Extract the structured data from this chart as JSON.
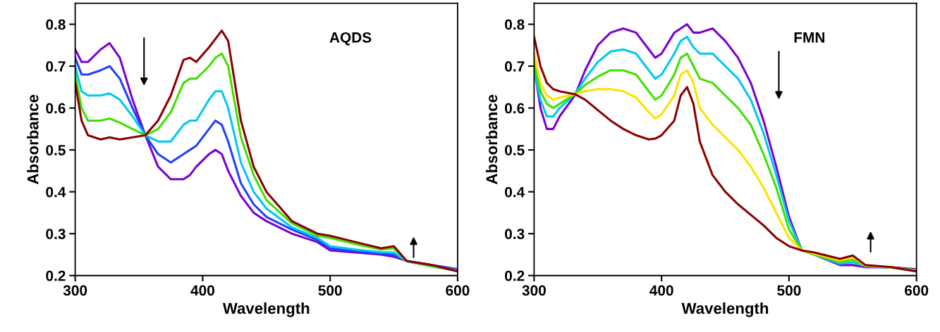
{
  "chart_data": [
    {
      "type": "line",
      "xlabel": "Wavelength",
      "ylabel": "Absorbance",
      "annotations": [
        "AQDS"
      ],
      "xlim": [
        300,
        600
      ],
      "xticks": [
        300,
        400,
        500,
        600
      ],
      "ylim": [
        0.2,
        0.85
      ],
      "yticks": [
        0.2,
        0.3,
        0.4,
        0.5,
        0.6,
        0.7,
        0.8
      ],
      "grid": false,
      "legend": false,
      "x": [
        300,
        305,
        310,
        320,
        327,
        335,
        345,
        355,
        365,
        375,
        385,
        390,
        395,
        405,
        410,
        415,
        420,
        430,
        440,
        450,
        470,
        490,
        500,
        520,
        540,
        550,
        560,
        580,
        600
      ],
      "series": [
        {
          "color": "#7a00d0",
          "values": [
            0.74,
            0.71,
            0.71,
            0.74,
            0.755,
            0.72,
            0.62,
            0.535,
            0.46,
            0.43,
            0.43,
            0.44,
            0.46,
            0.49,
            0.5,
            0.49,
            0.45,
            0.39,
            0.35,
            0.33,
            0.3,
            0.28,
            0.26,
            0.255,
            0.25,
            0.245,
            0.235,
            0.225,
            0.215
          ]
        },
        {
          "color": "#2040ff",
          "values": [
            0.72,
            0.68,
            0.68,
            0.69,
            0.7,
            0.67,
            0.6,
            0.535,
            0.49,
            0.47,
            0.49,
            0.5,
            0.51,
            0.55,
            0.57,
            0.56,
            0.52,
            0.42,
            0.37,
            0.34,
            0.31,
            0.285,
            0.265,
            0.258,
            0.252,
            0.25,
            0.235,
            0.223,
            0.213
          ]
        },
        {
          "color": "#00c8f0",
          "values": [
            0.7,
            0.64,
            0.63,
            0.63,
            0.635,
            0.62,
            0.58,
            0.535,
            0.52,
            0.52,
            0.56,
            0.57,
            0.57,
            0.62,
            0.64,
            0.64,
            0.6,
            0.47,
            0.4,
            0.36,
            0.315,
            0.29,
            0.27,
            0.262,
            0.256,
            0.255,
            0.234,
            0.222,
            0.212
          ]
        },
        {
          "color": "#40e000",
          "values": [
            0.68,
            0.6,
            0.57,
            0.57,
            0.575,
            0.565,
            0.55,
            0.535,
            0.55,
            0.59,
            0.66,
            0.67,
            0.67,
            0.7,
            0.72,
            0.73,
            0.7,
            0.53,
            0.44,
            0.38,
            0.325,
            0.295,
            0.29,
            0.275,
            0.262,
            0.265,
            0.235,
            0.222,
            0.211
          ]
        },
        {
          "color": "#8b0000",
          "values": [
            0.66,
            0.57,
            0.535,
            0.525,
            0.53,
            0.525,
            0.53,
            0.535,
            0.57,
            0.63,
            0.715,
            0.72,
            0.71,
            0.745,
            0.765,
            0.785,
            0.76,
            0.57,
            0.46,
            0.4,
            0.33,
            0.3,
            0.295,
            0.28,
            0.265,
            0.27,
            0.235,
            0.225,
            0.21
          ]
        }
      ]
    },
    {
      "type": "line",
      "xlabel": "Wavelength",
      "ylabel": "Absorbance",
      "annotations": [
        "FMN"
      ],
      "xlim": [
        300,
        600
      ],
      "xticks": [
        300,
        400,
        500,
        600
      ],
      "ylim": [
        0.2,
        0.85
      ],
      "yticks": [
        0.2,
        0.3,
        0.4,
        0.5,
        0.6,
        0.7,
        0.8
      ],
      "grid": false,
      "legend": false,
      "x": [
        300,
        305,
        310,
        315,
        320,
        332,
        340,
        350,
        360,
        370,
        380,
        390,
        395,
        400,
        410,
        415,
        420,
        425,
        430,
        440,
        450,
        460,
        470,
        480,
        490,
        500,
        510,
        520,
        540,
        550,
        560,
        580,
        600
      ],
      "series": [
        {
          "color": "#7a00d0",
          "values": [
            0.7,
            0.6,
            0.55,
            0.55,
            0.58,
            0.63,
            0.69,
            0.75,
            0.78,
            0.79,
            0.78,
            0.74,
            0.72,
            0.73,
            0.78,
            0.79,
            0.8,
            0.78,
            0.78,
            0.79,
            0.76,
            0.72,
            0.66,
            0.57,
            0.46,
            0.34,
            0.26,
            0.25,
            0.225,
            0.225,
            0.22,
            0.22,
            0.215
          ]
        },
        {
          "color": "#00c8f0",
          "values": [
            0.69,
            0.62,
            0.58,
            0.58,
            0.6,
            0.633,
            0.67,
            0.71,
            0.735,
            0.74,
            0.73,
            0.69,
            0.67,
            0.68,
            0.73,
            0.76,
            0.77,
            0.745,
            0.73,
            0.73,
            0.7,
            0.67,
            0.62,
            0.54,
            0.44,
            0.33,
            0.26,
            0.25,
            0.228,
            0.232,
            0.222,
            0.219,
            0.213
          ]
        },
        {
          "color": "#40e000",
          "values": [
            0.71,
            0.64,
            0.61,
            0.6,
            0.61,
            0.633,
            0.655,
            0.675,
            0.69,
            0.69,
            0.68,
            0.64,
            0.62,
            0.63,
            0.68,
            0.72,
            0.73,
            0.7,
            0.67,
            0.66,
            0.63,
            0.6,
            0.56,
            0.49,
            0.41,
            0.31,
            0.26,
            0.25,
            0.232,
            0.238,
            0.223,
            0.219,
            0.212
          ]
        },
        {
          "color": "#ffe000",
          "values": [
            0.73,
            0.66,
            0.63,
            0.62,
            0.625,
            0.633,
            0.64,
            0.645,
            0.645,
            0.64,
            0.625,
            0.59,
            0.575,
            0.585,
            0.63,
            0.68,
            0.69,
            0.66,
            0.6,
            0.56,
            0.53,
            0.5,
            0.46,
            0.41,
            0.35,
            0.29,
            0.26,
            0.252,
            0.236,
            0.244,
            0.224,
            0.22,
            0.211
          ]
        },
        {
          "color": "#8b0000",
          "values": [
            0.77,
            0.7,
            0.66,
            0.645,
            0.64,
            0.633,
            0.62,
            0.595,
            0.57,
            0.55,
            0.535,
            0.525,
            0.527,
            0.535,
            0.57,
            0.63,
            0.65,
            0.61,
            0.52,
            0.44,
            0.4,
            0.37,
            0.345,
            0.32,
            0.29,
            0.27,
            0.26,
            0.255,
            0.24,
            0.248,
            0.225,
            0.22,
            0.21
          ]
        }
      ]
    }
  ]
}
